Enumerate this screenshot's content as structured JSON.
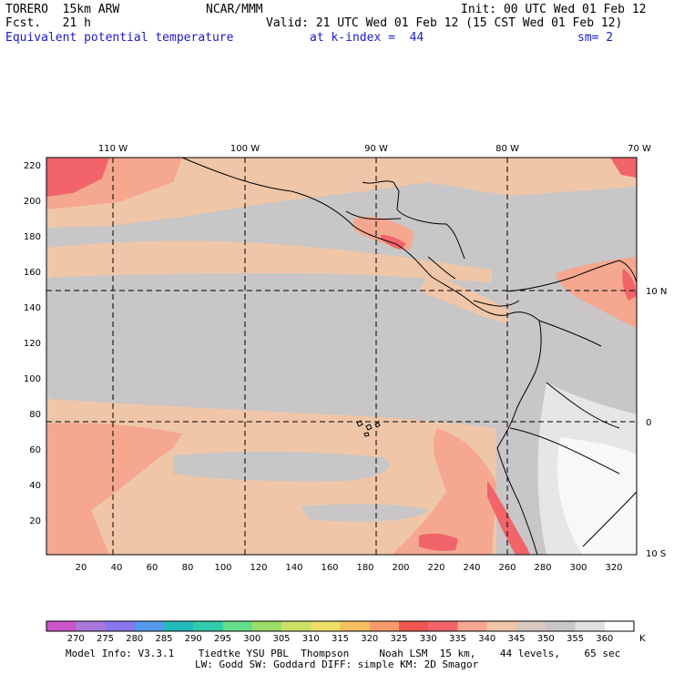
{
  "header": {
    "model": "TORERO  15km ARW",
    "center": "NCAR/MMM",
    "init": "Init: 00 UTC Wed 01 Feb 12",
    "fcst": "Fcst.   21 h",
    "valid": "Valid: 21 UTC Wed 01 Feb 12 (15 CST Wed 01 Feb 12)",
    "field": "Equivalent potential temperature",
    "level": "at k-index =  44",
    "smooth": "sm= 2"
  },
  "map": {
    "colors": {
      "gray": "#c8c6c6",
      "tan": "#f0c6a8",
      "salmon": "#f5a790",
      "red": "#f0646a",
      "light": "#e6e6e6",
      "white": "#f8f8f8",
      "land": "#d8ccc4"
    },
    "lon_labels": [
      "110 W",
      "100 W",
      "90 W",
      "80 W",
      "70 W"
    ],
    "lat_labels": [
      "10 N",
      "0",
      "10 S"
    ],
    "x_ticks": [
      "20",
      "40",
      "60",
      "80",
      "100",
      "120",
      "140",
      "160",
      "180",
      "200",
      "220",
      "240",
      "260",
      "280",
      "300",
      "320"
    ],
    "y_ticks": [
      "220",
      "200",
      "180",
      "160",
      "140",
      "120",
      "100",
      "80",
      "60",
      "40",
      "20"
    ]
  },
  "colorbar": {
    "colors": [
      "#cc55cc",
      "#aa77dd",
      "#8877ee",
      "#5599ee",
      "#22bbbb",
      "#33ccaa",
      "#66dd88",
      "#99dd66",
      "#cce066",
      "#eedd66",
      "#f5c060",
      "#f59b6a",
      "#f0564e",
      "#f0646a",
      "#f5a790",
      "#f0c6a8",
      "#d8c8c0",
      "#c8c6c6",
      "#e0e0e0",
      "#ffffff"
    ],
    "labels": [
      "270",
      "275",
      "280",
      "285",
      "290",
      "295",
      "300",
      "305",
      "310",
      "315",
      "320",
      "325",
      "330",
      "335",
      "340",
      "345",
      "350",
      "355",
      "360"
    ],
    "unit": "K"
  },
  "footer": {
    "line1": "Model Info: V3.3.1    Tiedtke YSU PBL  Thompson     Noah LSM  15 km,    44 levels,    65 sec",
    "line2": "LW: Godd SW: Goddard DIFF: simple KM: 2D Smagor"
  }
}
